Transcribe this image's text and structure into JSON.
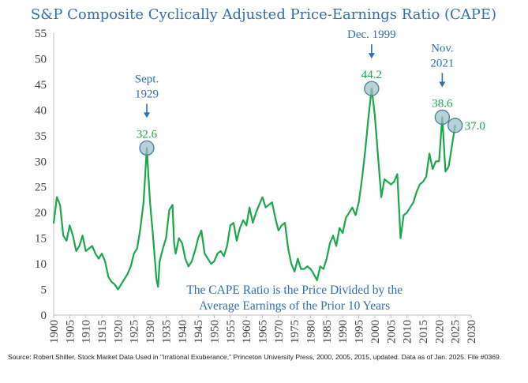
{
  "chart_data": {
    "type": "line",
    "title": "S&P Composite Cyclically Adjusted Price-Earnings Ratio (CAPE)",
    "xlabel": "",
    "ylabel": "",
    "xlim": [
      1900,
      2030
    ],
    "ylim": [
      0,
      55
    ],
    "x_ticks": [
      1900,
      1905,
      1910,
      1915,
      1920,
      1925,
      1930,
      1935,
      1940,
      1945,
      1950,
      1955,
      1960,
      1965,
      1970,
      1975,
      1980,
      1985,
      1990,
      1995,
      2000,
      2005,
      2010,
      2015,
      2020,
      2025,
      2030
    ],
    "y_ticks": [
      0,
      5,
      10,
      15,
      20,
      25,
      30,
      35,
      40,
      45,
      50,
      55
    ],
    "series": [
      {
        "name": "CAPE",
        "color": "#1aa84a",
        "x": [
          1900,
          1901,
          1902,
          1903,
          1904,
          1905,
          1906,
          1907,
          1908,
          1909,
          1910,
          1911,
          1912,
          1913,
          1914,
          1915,
          1916,
          1917,
          1918,
          1919,
          1920,
          1921,
          1922,
          1923,
          1924,
          1925,
          1926,
          1927,
          1928,
          1929,
          1929.7,
          1930,
          1931,
          1932,
          1932.5,
          1933,
          1934,
          1935,
          1936,
          1937,
          1937.5,
          1938,
          1939,
          1940,
          1941,
          1942,
          1943,
          1944,
          1945,
          1946,
          1947,
          1948,
          1949,
          1950,
          1951,
          1952,
          1953,
          1954,
          1955,
          1956,
          1957,
          1958,
          1959,
          1960,
          1961,
          1962,
          1963,
          1964,
          1965,
          1966,
          1967,
          1968,
          1969,
          1970,
          1971,
          1972,
          1973,
          1974,
          1975,
          1976,
          1977,
          1978,
          1979,
          1980,
          1981,
          1982,
          1983,
          1984,
          1985,
          1986,
          1987,
          1988,
          1989,
          1990,
          1991,
          1992,
          1993,
          1994,
          1995,
          1996,
          1997,
          1998,
          1999,
          2000,
          2001,
          2002,
          2003,
          2004,
          2005,
          2006,
          2007,
          2008,
          2009,
          2010,
          2011,
          2012,
          2013,
          2014,
          2015,
          2016,
          2017,
          2018,
          2019,
          2020,
          2021,
          2022,
          2023,
          2024,
          2025
        ],
        "values": [
          18.0,
          23.0,
          21.5,
          15.5,
          14.5,
          17.5,
          15.5,
          12.5,
          13.5,
          15.5,
          12.5,
          13.0,
          13.5,
          12.0,
          11.0,
          12.0,
          10.5,
          7.5,
          6.5,
          6.0,
          5.0,
          6.0,
          7.0,
          8.0,
          9.5,
          12.0,
          13.0,
          17.0,
          22.0,
          32.6,
          25.0,
          22.0,
          15.0,
          7.0,
          5.5,
          10.5,
          13.0,
          15.0,
          20.5,
          21.5,
          14.0,
          12.0,
          15.0,
          14.0,
          11.0,
          9.5,
          10.5,
          12.5,
          15.0,
          16.5,
          12.0,
          11.0,
          10.0,
          10.5,
          12.0,
          12.5,
          11.5,
          13.5,
          17.5,
          18.0,
          14.5,
          17.0,
          18.5,
          17.5,
          21.0,
          18.0,
          20.0,
          21.5,
          23.0,
          21.0,
          21.5,
          22.0,
          19.0,
          16.5,
          17.5,
          18.0,
          13.0,
          10.0,
          8.5,
          11.0,
          9.0,
          9.0,
          9.5,
          9.0,
          8.0,
          6.8,
          9.5,
          9.0,
          11.0,
          14.0,
          15.5,
          13.5,
          17.0,
          16.0,
          19.0,
          20.0,
          21.0,
          19.5,
          22.0,
          26.5,
          32.0,
          38.5,
          44.2,
          39.0,
          31.0,
          23.0,
          26.5,
          26.0,
          25.5,
          26.0,
          27.5,
          15.0,
          19.5,
          20.0,
          21.0,
          22.0,
          24.0,
          25.5,
          26.0,
          27.0,
          31.5,
          28.5,
          30.0,
          30.0,
          38.6,
          28.0,
          29.0,
          33.0,
          37.0
        ]
      }
    ],
    "annotations": [
      {
        "label_lines": [
          "Sept.",
          "1929"
        ],
        "x": 1929,
        "value": "32.6"
      },
      {
        "label_lines": [
          "Dec. 1999"
        ],
        "x": 1999,
        "value": "44.2"
      },
      {
        "label_lines": [
          "Nov.",
          "2021"
        ],
        "x": 2021,
        "value": "38.6"
      },
      {
        "label_lines": [],
        "x": 2025,
        "value": "37.0"
      }
    ],
    "note_lines": [
      "The CAPE Ratio is the Price Divided by the",
      "Average Earnings of the Prior 10 Years"
    ]
  },
  "source": "Source: Robert Shiller, Stock Market Data Used in \"Irrational Exuberance,\" Princeton University Press, 2000, 2005, 2015, updated. Data as of Jan. 2025. File #0369.",
  "colors": {
    "line": "#1aa84a",
    "title": "#2f6fb0",
    "annotation": "#2f6fb0",
    "value": "#1aa84a",
    "marker_fill": "#9cbcc8",
    "marker_stroke": "#4a7f95"
  }
}
